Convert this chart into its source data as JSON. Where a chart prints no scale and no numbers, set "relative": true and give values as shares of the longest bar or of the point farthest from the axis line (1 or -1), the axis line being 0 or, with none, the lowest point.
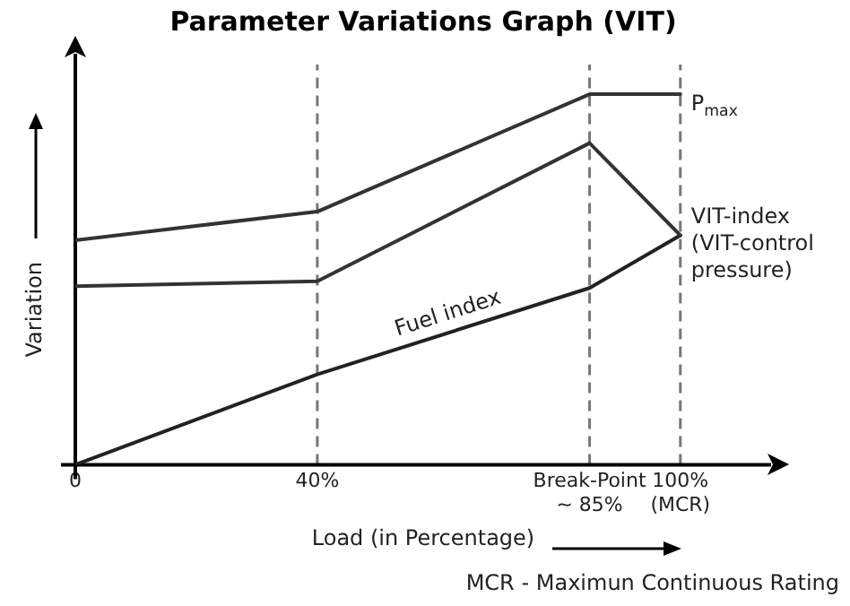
{
  "chart_data": {
    "type": "line",
    "title": "Parameter Variations Graph (VIT)",
    "xlabel": "Load (in Percentage)",
    "ylabel": "Variation",
    "relative": true,
    "x": [
      0,
      40,
      85,
      100
    ],
    "xlim": [
      0,
      115
    ],
    "xticks": [
      {
        "value": 0,
        "label": "0"
      },
      {
        "value": 40,
        "label": "40%"
      },
      {
        "value": 85,
        "label": "Break-Point ~ 85%"
      },
      {
        "value": 100,
        "label": "100% (MCR)"
      }
    ],
    "series": [
      {
        "name": "P$_{max}$",
        "color": "#333333",
        "values": [
          0.606,
          0.683,
          1,
          1
        ]
      },
      {
        "name": "VIT-index (VIT-control pressure)",
        "color": "#333333",
        "values": [
          0.482,
          0.495,
          0.868,
          0.619
        ]
      },
      {
        "name": "Fuel index",
        "color": "#222222",
        "values": [
          0,
          0.244,
          0.477,
          0.619
        ]
      }
    ],
    "ref_lines": [
      {
        "axis": "x",
        "value": 40,
        "color": "#777777",
        "line_style": "dashed"
      },
      {
        "axis": "x",
        "value": 85,
        "color": "#777777",
        "line_style": "dashed"
      },
      {
        "axis": "x",
        "value": 100,
        "color": "#777777",
        "line_style": "dashed"
      }
    ],
    "grid": false,
    "legend": false,
    "marker": "none",
    "line_style": "solid",
    "annotations": [
      "MCR - Maximun Continuous Rating"
    ]
  }
}
